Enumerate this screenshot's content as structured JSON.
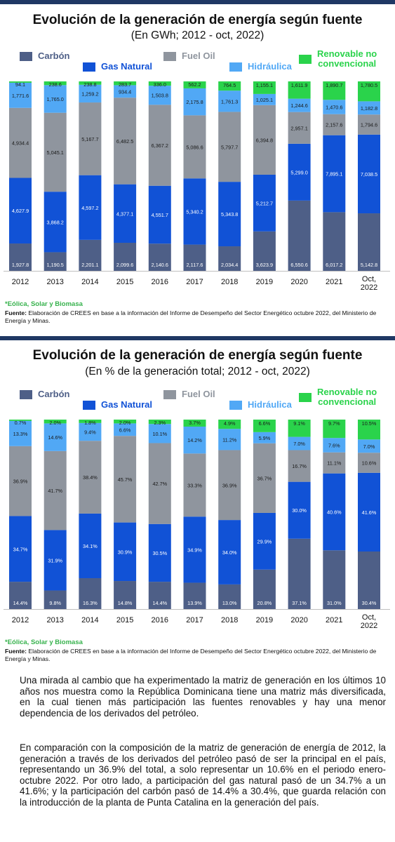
{
  "colors": {
    "carbon": "#4e5f87",
    "gas": "#1152d6",
    "fuel": "#8f959e",
    "hidro": "#51a8f5",
    "renov": "#2ad34b",
    "topbar": "#1f3864"
  },
  "legend": {
    "carbon": "Carbón",
    "gas": "Gas Natural",
    "fuel": "Fuel Oil",
    "hidro": "Hidráulica",
    "renov_1": "Renovable no",
    "renov_2": "convencional"
  },
  "footnote": "*Eólica, Solar y Biomasa",
  "source_label": "Fuente:",
  "source_text": " Elaboración de CREES en base a la información del Informe de Desempeño del Sector Energético octubre 2022, del Ministerio de Energía y Minas.",
  "chart_data": [
    {
      "type": "bar",
      "stacked": true,
      "title": "Evolución de la generación de energía según fuente",
      "subtitle": "(En GWh; 2012 - oct, 2022)",
      "categories": [
        "2012",
        "2013",
        "2014",
        "2015",
        "2016",
        "2017",
        "2018",
        "2019",
        "2020",
        "2021",
        "Oct,|2022"
      ],
      "series": [
        {
          "name": "Carbón",
          "values": [
            1927.8,
            1190.5,
            2201.1,
            2099.6,
            2140.6,
            2117.6,
            2034.4,
            3623.9,
            6550.6,
            6017.2,
            5142.8
          ],
          "labels": [
            "1,927.8",
            "1,190.5",
            "2,201.1",
            "2,099.6",
            "2,140.6",
            "2,117.6",
            "2,034.4",
            "3,623.9",
            "6,550.6",
            "6,017.2",
            "5,142.8"
          ]
        },
        {
          "name": "Gas Natural",
          "values": [
            4627.9,
            3868.2,
            4597.2,
            4377.1,
            4551.7,
            5340.2,
            5343.8,
            5212.7,
            5299.0,
            7895.1,
            7038.5
          ],
          "labels": [
            "4,627.9",
            "3,868.2",
            "4,597.2",
            "4,377.1",
            "4,551.7",
            "5,340.2",
            "5,343.8",
            "5,212.7",
            "5,299.0",
            "7,895.1",
            "7,038.5"
          ]
        },
        {
          "name": "Fuel Oil",
          "values": [
            4934.4,
            5045.1,
            5167.7,
            6482.5,
            6367.2,
            5086.6,
            5797.7,
            6394.8,
            2957.1,
            2157.6,
            1794.6
          ],
          "labels": [
            "4,934.4",
            "5,045.1",
            "5,167.7",
            "6,482.5",
            "6,367.2",
            "5,086.6",
            "5,797.7",
            "6,394.8",
            "2,957.1",
            "2,157.6",
            "1,794.6"
          ]
        },
        {
          "name": "Hidráulica",
          "values": [
            1771.6,
            1765.0,
            1259.2,
            934.4,
            1503.8,
            2175.8,
            1761.3,
            1025.1,
            1244.6,
            1470.6,
            1182.8
          ],
          "labels": [
            "1,771.6",
            "1,765.0",
            "1,259.2",
            "934.4",
            "1,503.8",
            "2,175.8",
            "1,761.3",
            "1,025.1",
            "1,244.6",
            "1,470.6",
            "1,182.8"
          ]
        },
        {
          "name": "Renovable no convencional",
          "values": [
            94.1,
            238.6,
            238.8,
            283.7,
            336.0,
            562.2,
            764.5,
            1155.1,
            1611.9,
            1890.7,
            1780.5
          ],
          "labels": [
            "94.1",
            "238.6",
            "238.8",
            "283.7",
            "336.0",
            "562.2",
            "764.5",
            "1,155.1",
            "1,611.9",
            "1,890.7",
            "1,780.5"
          ]
        }
      ]
    },
    {
      "type": "bar",
      "stacked": true,
      "title": "Evolución de la generación de energía según fuente",
      "subtitle": "(En % de la generación total; 2012 - oct, 2022)",
      "categories": [
        "2012",
        "2013",
        "2014",
        "2015",
        "2016",
        "2017",
        "2018",
        "2019",
        "2020",
        "2021",
        "Oct,|2022"
      ],
      "series": [
        {
          "name": "Carbón",
          "values": [
            14.4,
            9.8,
            16.3,
            14.8,
            14.4,
            13.9,
            13.0,
            20.8,
            37.1,
            31.0,
            30.4
          ],
          "labels": [
            "14.4%",
            "9.8%",
            "16.3%",
            "14.8%",
            "14.4%",
            "13.9%",
            "13.0%",
            "20.8%",
            "37.1%",
            "31.0%",
            "30.4%"
          ]
        },
        {
          "name": "Gas Natural",
          "values": [
            34.7,
            31.9,
            34.1,
            30.9,
            30.5,
            34.9,
            34.0,
            29.9,
            30.0,
            40.6,
            41.6
          ],
          "labels": [
            "34.7%",
            "31.9%",
            "34.1%",
            "30.9%",
            "30.5%",
            "34.9%",
            "34.0%",
            "29.9%",
            "30.0%",
            "40.6%",
            "41.6%"
          ]
        },
        {
          "name": "Fuel Oil",
          "values": [
            36.9,
            41.7,
            38.4,
            45.7,
            42.7,
            33.3,
            36.9,
            36.7,
            16.7,
            11.1,
            10.6
          ],
          "labels": [
            "36.9%",
            "41.7%",
            "38.4%",
            "45.7%",
            "42.7%",
            "33.3%",
            "36.9%",
            "36.7%",
            "16.7%",
            "11.1%",
            "10.6%"
          ]
        },
        {
          "name": "Hidráulica",
          "values": [
            13.3,
            14.6,
            9.4,
            6.6,
            10.1,
            14.2,
            11.2,
            5.9,
            7.0,
            7.6,
            7.0
          ],
          "labels": [
            "13.3%",
            "14.6%",
            "9.4%",
            "6.6%",
            "10.1%",
            "14.2%",
            "11.2%",
            "5.9%",
            "7.0%",
            "7.6%",
            "7.0%"
          ]
        },
        {
          "name": "Renovable no convencional",
          "values": [
            0.7,
            2.0,
            1.8,
            2.0,
            2.3,
            3.7,
            4.9,
            6.6,
            9.1,
            9.7,
            10.5
          ],
          "labels": [
            "0.7%",
            "2.0%",
            "1.8%",
            "2.0%",
            "2.3%",
            "3.7%",
            "4.9%",
            "6.6%",
            "9.1%",
            "9.7%",
            "10.5%"
          ]
        }
      ]
    }
  ],
  "text": {
    "para1": "Una mirada al cambio que ha experimentado la matriz de generación en los últimos 10 años nos muestra como la República Dominicana tiene una matriz más diversificada, en la cual tienen más participación las fuentes renovables y hay una menor dependencia de los derivados del petróleo.",
    "para2": "En comparación con la composición de la matriz de generación de energía de 2012, la generación a través de los derivados del petróleo pasó de ser la principal en el país, representando un 36.9% del total, a solo representar un 10.6% en el periodo enero-octubre 2022. Por otro lado, a participación del gas natural pasó de un 34.7% a un 41.6%; y la participación del carbón pasó de 14.4% a 30.4%, que guarda relación con la introducción de la planta de Punta Catalina en la generación del país."
  }
}
